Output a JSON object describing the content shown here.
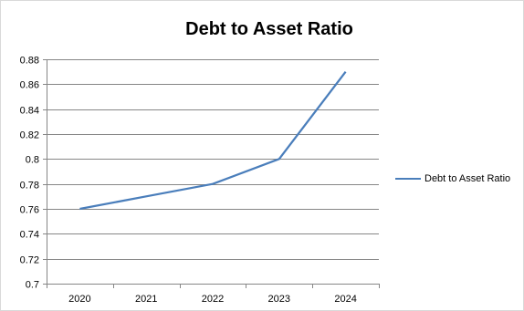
{
  "chart_data": {
    "type": "line",
    "title": "Debt to Asset Ratio",
    "xlabel": "",
    "ylabel": "",
    "categories": [
      "2020",
      "2021",
      "2022",
      "2023",
      "2024"
    ],
    "series": [
      {
        "name": "Debt to Asset Ratio",
        "values": [
          0.76,
          0.77,
          0.78,
          0.8,
          0.87
        ],
        "color": "#4a7ebb"
      }
    ],
    "ylim": [
      0.7,
      0.88
    ],
    "yticks": [
      "0.7",
      "0.72",
      "0.74",
      "0.76",
      "0.78",
      "0.8",
      "0.82",
      "0.84",
      "0.86",
      "0.88"
    ],
    "grid": true,
    "legend": "right"
  }
}
